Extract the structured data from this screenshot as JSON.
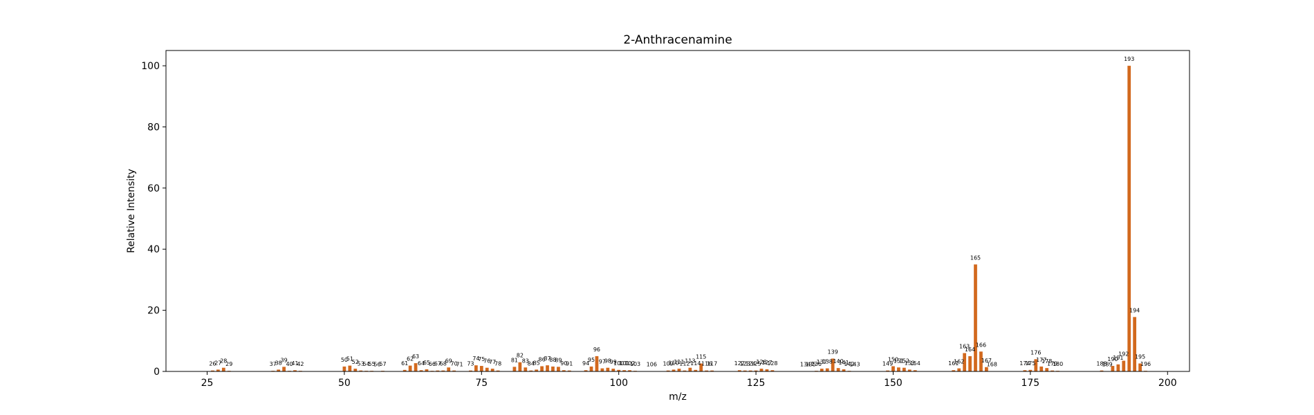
{
  "chart_data": {
    "type": "bar",
    "title": "2-Anthracenamine",
    "xlabel": "m/z",
    "ylabel": "Relative Intensity",
    "xlim": [
      17.5,
      204
    ],
    "ylim": [
      0,
      105
    ],
    "xticks": [
      25,
      50,
      75,
      100,
      125,
      150,
      175,
      200
    ],
    "yticks": [
      0,
      20,
      40,
      60,
      80,
      100
    ],
    "bar_color": "#d2691e",
    "grid": false,
    "legend": "none",
    "points": [
      {
        "mz": 26,
        "intensity": 0.3
      },
      {
        "mz": 27,
        "intensity": 0.6
      },
      {
        "mz": 28,
        "intensity": 1.2
      },
      {
        "mz": 29,
        "intensity": 0.2
      },
      {
        "mz": 37,
        "intensity": 0.2
      },
      {
        "mz": 38,
        "intensity": 0.6
      },
      {
        "mz": 39,
        "intensity": 1.5
      },
      {
        "mz": 40,
        "intensity": 0.2
      },
      {
        "mz": 41,
        "intensity": 0.4
      },
      {
        "mz": 42,
        "intensity": 0.2
      },
      {
        "mz": 50,
        "intensity": 1.6
      },
      {
        "mz": 51,
        "intensity": 1.9
      },
      {
        "mz": 52,
        "intensity": 0.9
      },
      {
        "mz": 53,
        "intensity": 0.3
      },
      {
        "mz": 54,
        "intensity": 0.2
      },
      {
        "mz": 55,
        "intensity": 0.2
      },
      {
        "mz": 56,
        "intensity": 0.1
      },
      {
        "mz": 57,
        "intensity": 0.2
      },
      {
        "mz": 61,
        "intensity": 0.5
      },
      {
        "mz": 62,
        "intensity": 1.9
      },
      {
        "mz": 63,
        "intensity": 2.7
      },
      {
        "mz": 64,
        "intensity": 0.4
      },
      {
        "mz": 65,
        "intensity": 0.7
      },
      {
        "mz": 66,
        "intensity": 0.2
      },
      {
        "mz": 67,
        "intensity": 0.3
      },
      {
        "mz": 68,
        "intensity": 0.3
      },
      {
        "mz": 69,
        "intensity": 1.3
      },
      {
        "mz": 70,
        "intensity": 0.3
      },
      {
        "mz": 71,
        "intensity": 0.1
      },
      {
        "mz": 73,
        "intensity": 0.3
      },
      {
        "mz": 74,
        "intensity": 2.0
      },
      {
        "mz": 75,
        "intensity": 1.8
      },
      {
        "mz": 76,
        "intensity": 1.2
      },
      {
        "mz": 77,
        "intensity": 0.9
      },
      {
        "mz": 78,
        "intensity": 0.3
      },
      {
        "mz": 81,
        "intensity": 1.5
      },
      {
        "mz": 82,
        "intensity": 3.0
      },
      {
        "mz": 83,
        "intensity": 1.3
      },
      {
        "mz": 84,
        "intensity": 0.3
      },
      {
        "mz": 85,
        "intensity": 0.6
      },
      {
        "mz": 86,
        "intensity": 1.7
      },
      {
        "mz": 87,
        "intensity": 2.0
      },
      {
        "mz": 88,
        "intensity": 1.6
      },
      {
        "mz": 89,
        "intensity": 1.5
      },
      {
        "mz": 90,
        "intensity": 0.4
      },
      {
        "mz": 91,
        "intensity": 0.3
      },
      {
        "mz": 94,
        "intensity": 0.4
      },
      {
        "mz": 95,
        "intensity": 1.6
      },
      {
        "mz": 96,
        "intensity": 5.0
      },
      {
        "mz": 97,
        "intensity": 1.0
      },
      {
        "mz": 98,
        "intensity": 1.2
      },
      {
        "mz": 99,
        "intensity": 0.9
      },
      {
        "mz": 100,
        "intensity": 0.5
      },
      {
        "mz": 101,
        "intensity": 0.4
      },
      {
        "mz": 102,
        "intensity": 0.4
      },
      {
        "mz": 103,
        "intensity": 0.2
      },
      {
        "mz": 106,
        "intensity": 0.1
      },
      {
        "mz": 109,
        "intensity": 0.3
      },
      {
        "mz": 110,
        "intensity": 0.6
      },
      {
        "mz": 111,
        "intensity": 0.9
      },
      {
        "mz": 112,
        "intensity": 0.3
      },
      {
        "mz": 113,
        "intensity": 1.2
      },
      {
        "mz": 114,
        "intensity": 0.5
      },
      {
        "mz": 115,
        "intensity": 2.6
      },
      {
        "mz": 116,
        "intensity": 0.3
      },
      {
        "mz": 117,
        "intensity": 0.3
      },
      {
        "mz": 122,
        "intensity": 0.4
      },
      {
        "mz": 123,
        "intensity": 0.3
      },
      {
        "mz": 124,
        "intensity": 0.3
      },
      {
        "mz": 125,
        "intensity": 0.3
      },
      {
        "mz": 126,
        "intensity": 0.9
      },
      {
        "mz": 127,
        "intensity": 0.7
      },
      {
        "mz": 128,
        "intensity": 0.4
      },
      {
        "mz": 134,
        "intensity": 0.1
      },
      {
        "mz": 135,
        "intensity": 0.1
      },
      {
        "mz": 136,
        "intensity": 0.2
      },
      {
        "mz": 137,
        "intensity": 0.9
      },
      {
        "mz": 138,
        "intensity": 1.0
      },
      {
        "mz": 139,
        "intensity": 4.2
      },
      {
        "mz": 140,
        "intensity": 1.1
      },
      {
        "mz": 141,
        "intensity": 0.7
      },
      {
        "mz": 142,
        "intensity": 0.2
      },
      {
        "mz": 143,
        "intensity": 0.1
      },
      {
        "mz": 149,
        "intensity": 0.3
      },
      {
        "mz": 150,
        "intensity": 1.7
      },
      {
        "mz": 151,
        "intensity": 1.3
      },
      {
        "mz": 152,
        "intensity": 1.2
      },
      {
        "mz": 153,
        "intensity": 0.6
      },
      {
        "mz": 154,
        "intensity": 0.4
      },
      {
        "mz": 161,
        "intensity": 0.4
      },
      {
        "mz": 162,
        "intensity": 1.0
      },
      {
        "mz": 163,
        "intensity": 6.0
      },
      {
        "mz": 164,
        "intensity": 5.0
      },
      {
        "mz": 165,
        "intensity": 35.0
      },
      {
        "mz": 166,
        "intensity": 6.5
      },
      {
        "mz": 167,
        "intensity": 1.4
      },
      {
        "mz": 168,
        "intensity": 0.1
      },
      {
        "mz": 174,
        "intensity": 0.4
      },
      {
        "mz": 175,
        "intensity": 0.5
      },
      {
        "mz": 176,
        "intensity": 4.0
      },
      {
        "mz": 177,
        "intensity": 1.6
      },
      {
        "mz": 178,
        "intensity": 1.1
      },
      {
        "mz": 179,
        "intensity": 0.3
      },
      {
        "mz": 180,
        "intensity": 0.2
      },
      {
        "mz": 188,
        "intensity": 0.3
      },
      {
        "mz": 189,
        "intensity": 0.1
      },
      {
        "mz": 190,
        "intensity": 1.8
      },
      {
        "mz": 191,
        "intensity": 2.3
      },
      {
        "mz": 192,
        "intensity": 3.5
      },
      {
        "mz": 193,
        "intensity": 100.0
      },
      {
        "mz": 194,
        "intensity": 17.8
      },
      {
        "mz": 195,
        "intensity": 2.6
      },
      {
        "mz": 196,
        "intensity": 0.2
      }
    ]
  }
}
